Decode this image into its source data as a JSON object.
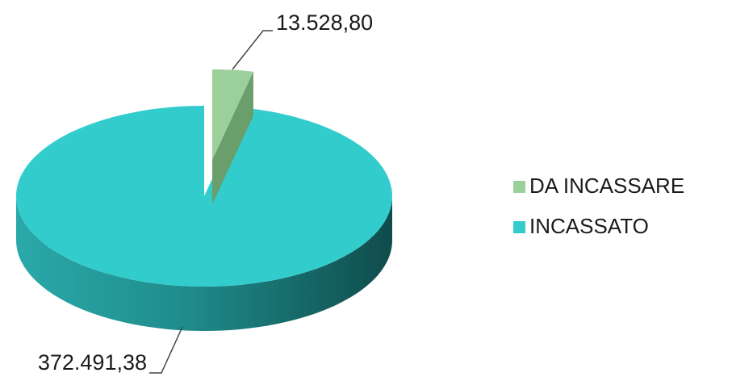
{
  "chart_data": {
    "type": "pie3d",
    "categories": [
      "DA INCASSARE",
      "INCASSATO"
    ],
    "values": [
      13528.8,
      372491.38
    ],
    "value_labels": [
      "13.528,80",
      "372.491,38"
    ],
    "colors": [
      "#9bd09a",
      "#33cccc"
    ],
    "legend": "right"
  }
}
